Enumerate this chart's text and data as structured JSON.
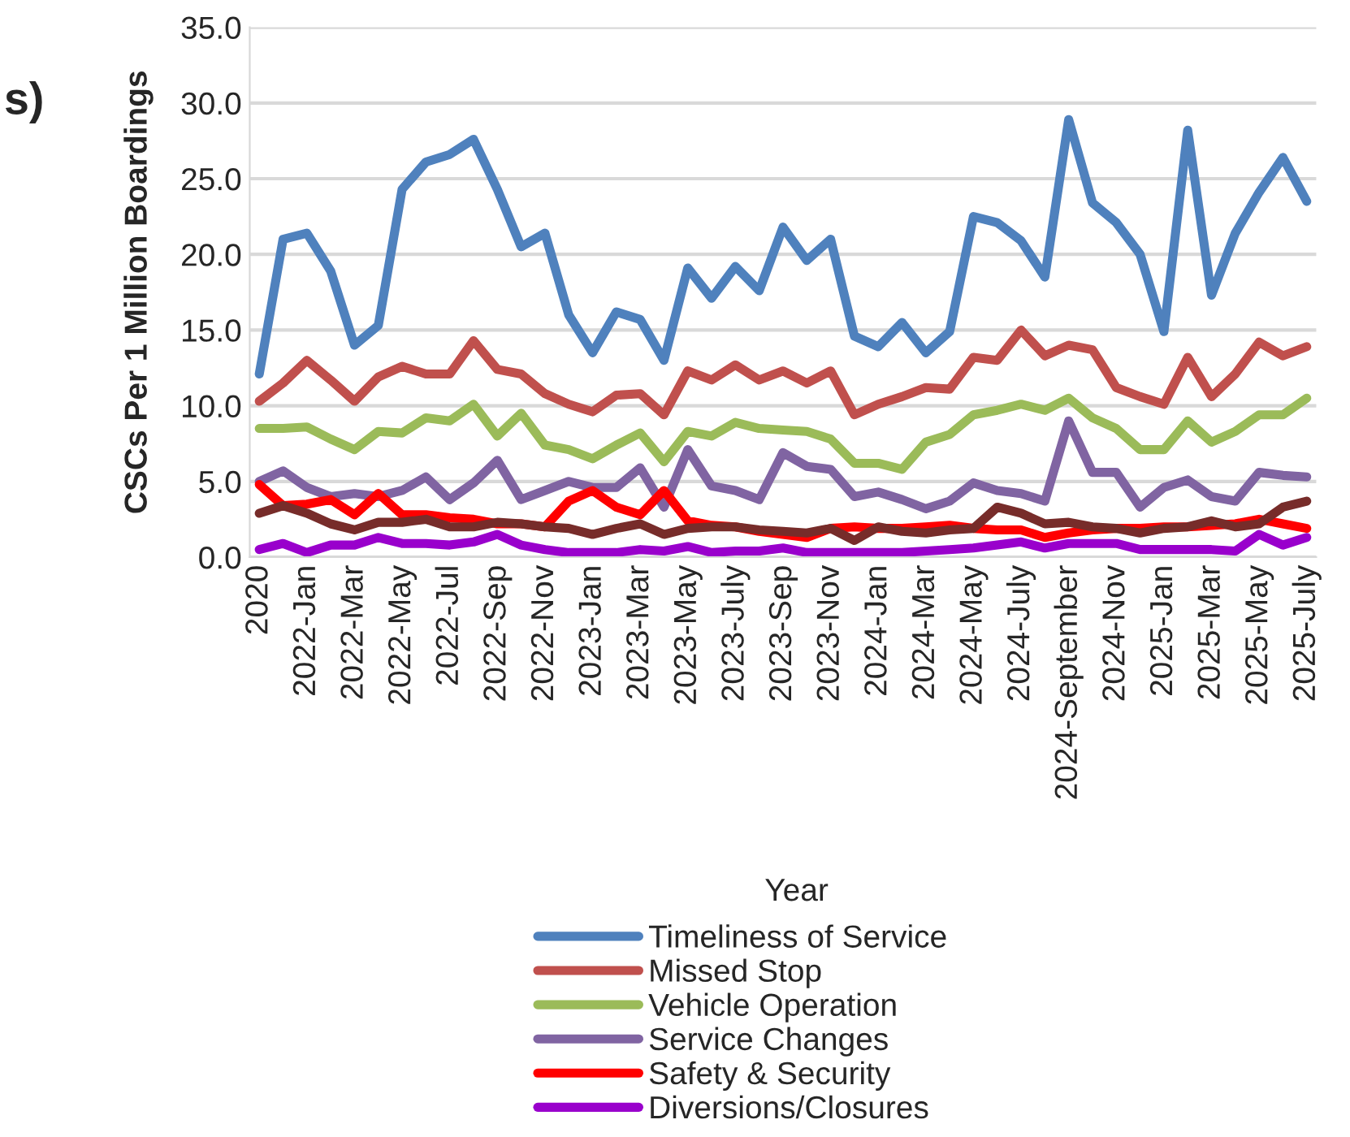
{
  "chart_data": {
    "type": "line",
    "ylabel": "CSCs Per 1 Million Boardings",
    "xlabel": "Year",
    "annotations": [
      "s)"
    ],
    "categories": [
      "2020",
      null,
      "2022-Jan",
      null,
      "2022-Mar",
      null,
      "2022-May",
      null,
      "2022-Jul",
      null,
      "2022-Sep",
      null,
      "2022-Nov",
      null,
      "2023-Jan",
      null,
      "2023-Mar",
      null,
      "2023-May",
      null,
      "2023-July",
      null,
      "2023-Sep",
      null,
      "2023-Nov",
      null,
      "2024-Jan",
      null,
      "2024-Mar",
      null,
      "2024-May",
      null,
      "2024-July",
      null,
      "2024-September",
      null,
      "2024-Nov",
      null,
      "2025-Jan",
      null,
      "2025-Mar",
      null,
      "2025-May",
      null,
      "2025-July"
    ],
    "series": [
      {
        "name": "Timeliness of Service",
        "color": "#4f81bd",
        "values": [
          12.1,
          21.0,
          21.4,
          18.9,
          14.0,
          15.3,
          24.3,
          26.1,
          26.6,
          27.6,
          24.3,
          20.5,
          21.4,
          16.0,
          13.5,
          16.2,
          15.7,
          13.0,
          19.1,
          17.1,
          19.2,
          17.6,
          21.8,
          19.6,
          21.0,
          14.6,
          13.9,
          15.5,
          13.5,
          14.9,
          22.5,
          22.1,
          20.9,
          18.5,
          28.9,
          23.4,
          22.1,
          20.0,
          14.9,
          28.2,
          17.3,
          21.4,
          24.1,
          26.4,
          23.5
        ]
      },
      {
        "name": "Missed Stop",
        "color": "#c0504d",
        "values": [
          10.3,
          11.5,
          13.0,
          11.7,
          10.3,
          11.9,
          12.6,
          12.1,
          12.1,
          14.3,
          12.4,
          12.1,
          10.8,
          10.1,
          9.6,
          10.7,
          10.8,
          9.4,
          12.3,
          11.7,
          12.7,
          11.7,
          12.3,
          11.5,
          12.3,
          9.4,
          10.1,
          10.6,
          11.2,
          11.1,
          13.2,
          13.0,
          15.0,
          13.3,
          14.0,
          13.7,
          11.2,
          10.6,
          10.1,
          13.2,
          10.6,
          12.1,
          14.2,
          13.3,
          13.9
        ]
      },
      {
        "name": "Vehicle Operation",
        "color": "#9bbb59",
        "values": [
          8.5,
          8.5,
          8.6,
          7.8,
          7.1,
          8.3,
          8.2,
          9.2,
          9.0,
          10.1,
          8.0,
          9.5,
          7.4,
          7.1,
          6.5,
          7.4,
          8.2,
          6.3,
          8.3,
          8.0,
          8.9,
          8.5,
          8.4,
          8.3,
          7.8,
          6.2,
          6.2,
          5.8,
          7.6,
          8.1,
          9.4,
          9.7,
          10.1,
          9.7,
          10.5,
          9.2,
          8.5,
          7.1,
          7.1,
          9.0,
          7.6,
          8.3,
          9.4,
          9.4,
          10.5
        ]
      },
      {
        "name": "Service Changes",
        "color": "#8064a2",
        "values": [
          5.0,
          5.7,
          4.6,
          4.0,
          4.2,
          4.0,
          4.4,
          5.3,
          3.8,
          4.9,
          6.4,
          3.8,
          4.4,
          5.0,
          4.6,
          4.6,
          5.9,
          3.3,
          7.1,
          4.7,
          4.4,
          3.8,
          6.9,
          6.0,
          5.8,
          4.0,
          4.3,
          3.8,
          3.2,
          3.7,
          4.9,
          4.4,
          4.2,
          3.7,
          9.0,
          5.6,
          5.6,
          3.3,
          4.6,
          5.1,
          4.0,
          3.7,
          5.6,
          5.4,
          5.3
        ]
      },
      {
        "name": "Safety & Security",
        "color": "#ff0000",
        "values": [
          4.8,
          3.4,
          3.5,
          3.8,
          2.8,
          4.2,
          2.8,
          2.8,
          2.6,
          2.5,
          2.2,
          2.2,
          2.0,
          3.7,
          4.4,
          3.3,
          2.8,
          4.4,
          2.4,
          2.1,
          2.0,
          1.7,
          1.5,
          1.3,
          1.9,
          2.0,
          1.9,
          1.9,
          2.0,
          2.1,
          1.9,
          1.8,
          1.8,
          1.3,
          1.6,
          1.8,
          1.9,
          1.9,
          2.0,
          2.0,
          2.1,
          2.2,
          2.5,
          2.2,
          1.9
        ]
      },
      {
        "name": "Diversions/Closures",
        "color": "#9900cc",
        "values": [
          0.5,
          0.9,
          0.3,
          0.8,
          0.8,
          1.3,
          0.9,
          0.9,
          0.8,
          1.0,
          1.5,
          0.8,
          0.5,
          0.3,
          0.3,
          0.3,
          0.5,
          0.4,
          0.7,
          0.3,
          0.4,
          0.4,
          0.6,
          0.3,
          0.3,
          0.3,
          0.3,
          0.3,
          0.4,
          0.5,
          0.6,
          0.8,
          1.0,
          0.6,
          0.9,
          0.9,
          0.9,
          0.5,
          0.5,
          0.5,
          0.5,
          0.4,
          1.5,
          0.8,
          1.3
        ]
      },
      {
        "color": "#772c2a",
        "values": [
          2.9,
          3.4,
          2.9,
          2.2,
          1.8,
          2.3,
          2.3,
          2.5,
          2.0,
          2.0,
          2.3,
          2.2,
          2.0,
          1.9,
          1.5,
          1.9,
          2.2,
          1.5,
          1.9,
          2.0,
          2.0,
          1.8,
          1.7,
          1.6,
          1.9,
          1.1,
          2.0,
          1.7,
          1.6,
          1.8,
          1.9,
          3.3,
          2.9,
          2.2,
          2.3,
          2.0,
          1.9,
          1.6,
          1.9,
          2.0,
          2.4,
          2.0,
          2.2,
          3.3,
          3.7
        ]
      }
    ],
    "ylim": [
      0,
      35
    ],
    "yticks": [
      {
        "value": 0,
        "label": "0.0"
      },
      {
        "value": 5,
        "label": "5.0"
      },
      {
        "value": 10,
        "label": "10.0"
      },
      {
        "value": 15,
        "label": "15.0"
      },
      {
        "value": 20,
        "label": "20.0"
      },
      {
        "value": 25,
        "label": "25.0"
      },
      {
        "value": 30,
        "label": "30.0"
      },
      {
        "value": 35,
        "label": "35.0"
      }
    ],
    "grid": "y",
    "legend": "bottom",
    "line_style": "solid",
    "marker": "none"
  }
}
